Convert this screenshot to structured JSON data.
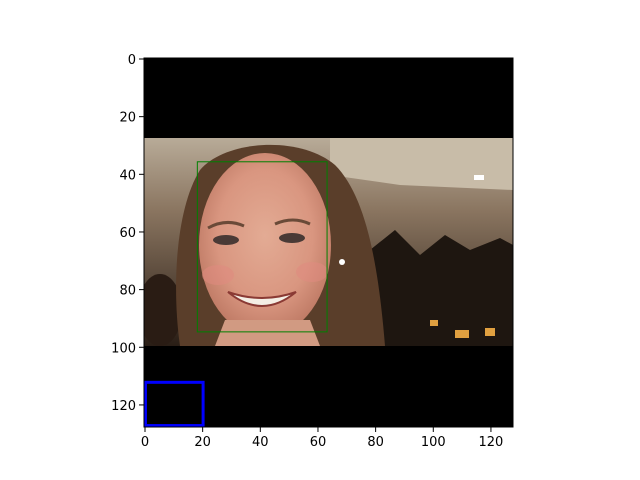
{
  "figure": {
    "background": "#ffffff",
    "image_extent": {
      "x": [
        0,
        128
      ],
      "y": [
        0,
        128
      ]
    },
    "x_ticks": [
      0,
      20,
      40,
      60,
      80,
      100,
      120
    ],
    "y_ticks": [
      0,
      20,
      40,
      60,
      80,
      100,
      120
    ],
    "y_axis_inverted": true
  },
  "photo": {
    "description_rows": [
      28,
      100
    ],
    "letterbox_color": "#000000"
  },
  "boxes": [
    {
      "name": "face-detection-box",
      "x0": 18.5,
      "y0": 36,
      "x1": 63.5,
      "y1": 95,
      "color": "#008000",
      "stroke_width": 1
    },
    {
      "name": "blue-marker-box",
      "x0": 0.5,
      "y0": 112.5,
      "x1": 20.5,
      "y1": 127.5,
      "color": "#0000ff",
      "stroke_width": 3
    }
  ]
}
